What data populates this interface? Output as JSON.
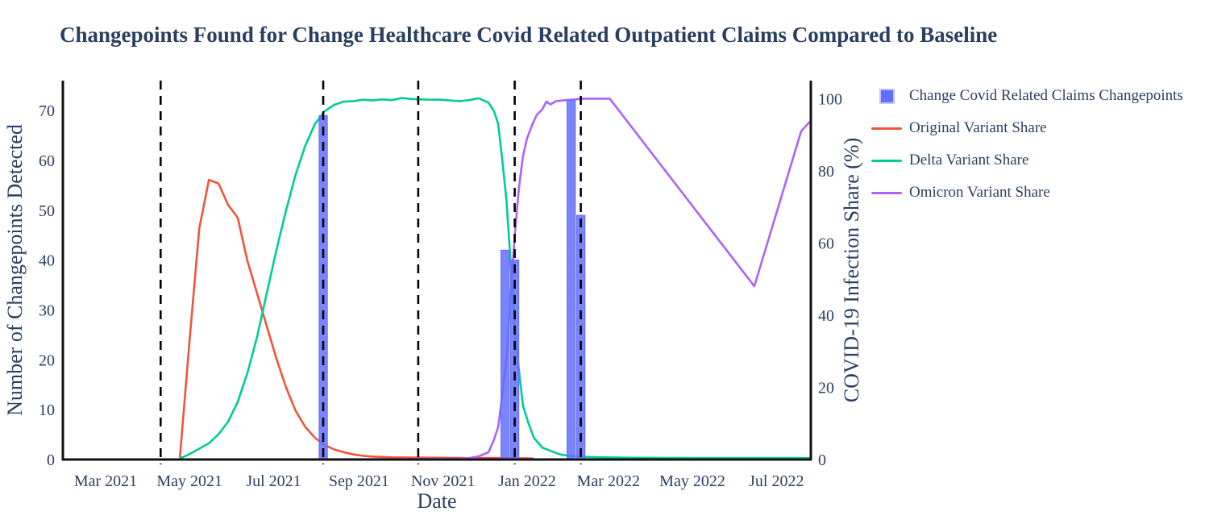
{
  "colors": {
    "text": "#2a3f5f",
    "axis_line": "#111111",
    "changepoint_bar": "#636EFA",
    "original_variant": "#EF553B",
    "delta_variant": "#00CC96",
    "omicron_variant": "#AB63FA",
    "vline": "#000000",
    "background": "#ffffff"
  },
  "chart_data": {
    "type": "line+bar",
    "title": "Changepoints Found for Change Healthcare Covid Related Outpatient Claims Compared to Baseline",
    "xlabel": "Date",
    "ylabel_left": "Number of Changepoints Detected",
    "ylabel_right": "COVID-19 Infection Share (%)",
    "x_range": [
      "2021-01-29",
      "2022-07-26"
    ],
    "y_left_range": [
      0,
      76
    ],
    "y_right_range": [
      0,
      105
    ],
    "x_ticks": [
      {
        "label": "Mar 2021",
        "date": "2021-03-01"
      },
      {
        "label": "May 2021",
        "date": "2021-05-01"
      },
      {
        "label": "Jul 2021",
        "date": "2021-07-01"
      },
      {
        "label": "Sep 2021",
        "date": "2021-09-01"
      },
      {
        "label": "Nov 2021",
        "date": "2021-11-01"
      },
      {
        "label": "Jan 2022",
        "date": "2022-01-01"
      },
      {
        "label": "Mar 2022",
        "date": "2022-03-01"
      },
      {
        "label": "May 2022",
        "date": "2022-05-01"
      },
      {
        "label": "Jul 2022",
        "date": "2022-07-01"
      }
    ],
    "y_left_ticks": [
      0,
      10,
      20,
      30,
      40,
      50,
      60,
      70
    ],
    "y_right_ticks": [
      0,
      20,
      40,
      60,
      80,
      100
    ],
    "changepoint_vlines": [
      "2021-04-10",
      "2021-08-06",
      "2021-10-14",
      "2021-12-23",
      "2022-02-09"
    ],
    "bars": {
      "name": "Change Covid Related Claims Changepoints",
      "axis": "left",
      "width_days": 6,
      "points": [
        {
          "date": "2021-08-06",
          "count": 69
        },
        {
          "date": "2021-12-16",
          "count": 42
        },
        {
          "date": "2021-12-23",
          "count": 40
        },
        {
          "date": "2022-02-02",
          "count": 72
        },
        {
          "date": "2022-02-09",
          "count": 49
        }
      ]
    },
    "series": [
      {
        "name": "Original Variant Share",
        "axis": "right",
        "points": [
          [
            "2021-04-24",
            0.8
          ],
          [
            "2021-05-01",
            33
          ],
          [
            "2021-05-08",
            64
          ],
          [
            "2021-05-15",
            77.5
          ],
          [
            "2021-05-22",
            76.5
          ],
          [
            "2021-05-29",
            70.5
          ],
          [
            "2021-06-05",
            67
          ],
          [
            "2021-06-12",
            55
          ],
          [
            "2021-06-19",
            46
          ],
          [
            "2021-06-26",
            37
          ],
          [
            "2021-07-03",
            28
          ],
          [
            "2021-07-10",
            20
          ],
          [
            "2021-07-17",
            13.5
          ],
          [
            "2021-07-24",
            9
          ],
          [
            "2021-07-31",
            6
          ],
          [
            "2021-08-07",
            4
          ],
          [
            "2021-08-14",
            2.8
          ],
          [
            "2021-08-21",
            2
          ],
          [
            "2021-08-28",
            1.4
          ],
          [
            "2021-09-04",
            1
          ],
          [
            "2021-09-11",
            0.8
          ],
          [
            "2021-09-25",
            0.6
          ],
          [
            "2021-10-23",
            0.5
          ],
          [
            "2021-11-20",
            0.4
          ],
          [
            "2021-12-18",
            0.4
          ],
          [
            "2022-01-05",
            0.3
          ]
        ]
      },
      {
        "name": "Delta Variant Share",
        "axis": "right",
        "points": [
          [
            "2021-04-24",
            0.3
          ],
          [
            "2021-05-01",
            1.5
          ],
          [
            "2021-05-08",
            3
          ],
          [
            "2021-05-15",
            4.5
          ],
          [
            "2021-05-22",
            7
          ],
          [
            "2021-05-29",
            10.5
          ],
          [
            "2021-06-05",
            16
          ],
          [
            "2021-06-12",
            24
          ],
          [
            "2021-06-19",
            34
          ],
          [
            "2021-06-26",
            46
          ],
          [
            "2021-07-03",
            58
          ],
          [
            "2021-07-10",
            69
          ],
          [
            "2021-07-17",
            79
          ],
          [
            "2021-07-24",
            87
          ],
          [
            "2021-07-31",
            93
          ],
          [
            "2021-08-07",
            96.5
          ],
          [
            "2021-08-14",
            98.3
          ],
          [
            "2021-08-21",
            99.2
          ],
          [
            "2021-08-28",
            99.3
          ],
          [
            "2021-09-04",
            99.7
          ],
          [
            "2021-09-11",
            99.5
          ],
          [
            "2021-09-18",
            99.8
          ],
          [
            "2021-09-25",
            99.6
          ],
          [
            "2021-10-02",
            100.2
          ],
          [
            "2021-10-09",
            99.9
          ],
          [
            "2021-10-16",
            99.8
          ],
          [
            "2021-10-23",
            99.7
          ],
          [
            "2021-10-30",
            99.7
          ],
          [
            "2021-11-06",
            99.5
          ],
          [
            "2021-11-13",
            99.3
          ],
          [
            "2021-11-20",
            99.6
          ],
          [
            "2021-11-27",
            100.1
          ],
          [
            "2021-12-04",
            98.9
          ],
          [
            "2021-12-08",
            96.5
          ],
          [
            "2021-12-11",
            93
          ],
          [
            "2021-12-14",
            83
          ],
          [
            "2021-12-17",
            72
          ],
          [
            "2021-12-20",
            55
          ],
          [
            "2021-12-23",
            37
          ],
          [
            "2021-12-26",
            25
          ],
          [
            "2021-12-29",
            15
          ],
          [
            "2022-01-02",
            10
          ],
          [
            "2022-01-06",
            6
          ],
          [
            "2022-01-12",
            3.3
          ],
          [
            "2022-01-18",
            2.4
          ],
          [
            "2022-01-25",
            1.4
          ],
          [
            "2022-02-01",
            1
          ],
          [
            "2022-02-15",
            0.7
          ],
          [
            "2022-03-15",
            0.5
          ],
          [
            "2022-05-01",
            0.4
          ],
          [
            "2022-07-25",
            0.4
          ]
        ]
      },
      {
        "name": "Omicron Variant Share",
        "axis": "right",
        "points": [
          [
            "2021-01-29",
            0
          ],
          [
            "2021-06-01",
            0
          ],
          [
            "2021-10-01",
            0.1
          ],
          [
            "2021-11-13",
            0.2
          ],
          [
            "2021-11-20",
            0.4
          ],
          [
            "2021-11-27",
            0.9
          ],
          [
            "2021-12-04",
            2
          ],
          [
            "2021-12-08",
            5.5
          ],
          [
            "2021-12-11",
            9
          ],
          [
            "2021-12-14",
            18
          ],
          [
            "2021-12-17",
            28
          ],
          [
            "2021-12-20",
            45
          ],
          [
            "2021-12-23",
            62
          ],
          [
            "2021-12-26",
            75
          ],
          [
            "2021-12-29",
            84
          ],
          [
            "2022-01-01",
            89
          ],
          [
            "2022-01-05",
            93
          ],
          [
            "2022-01-08",
            95.5
          ],
          [
            "2022-01-12",
            97
          ],
          [
            "2022-01-15",
            99.2
          ],
          [
            "2022-01-18",
            98.4
          ],
          [
            "2022-01-22",
            99.3
          ],
          [
            "2022-01-29",
            99.6
          ],
          [
            "2022-02-05",
            99.8
          ],
          [
            "2022-02-09",
            100
          ],
          [
            "2022-03-02",
            100
          ],
          [
            "2022-06-15",
            48
          ],
          [
            "2022-07-19",
            91
          ],
          [
            "2022-07-25",
            93.5
          ]
        ]
      }
    ],
    "legend_position": "top-right-outside",
    "grid": false
  }
}
